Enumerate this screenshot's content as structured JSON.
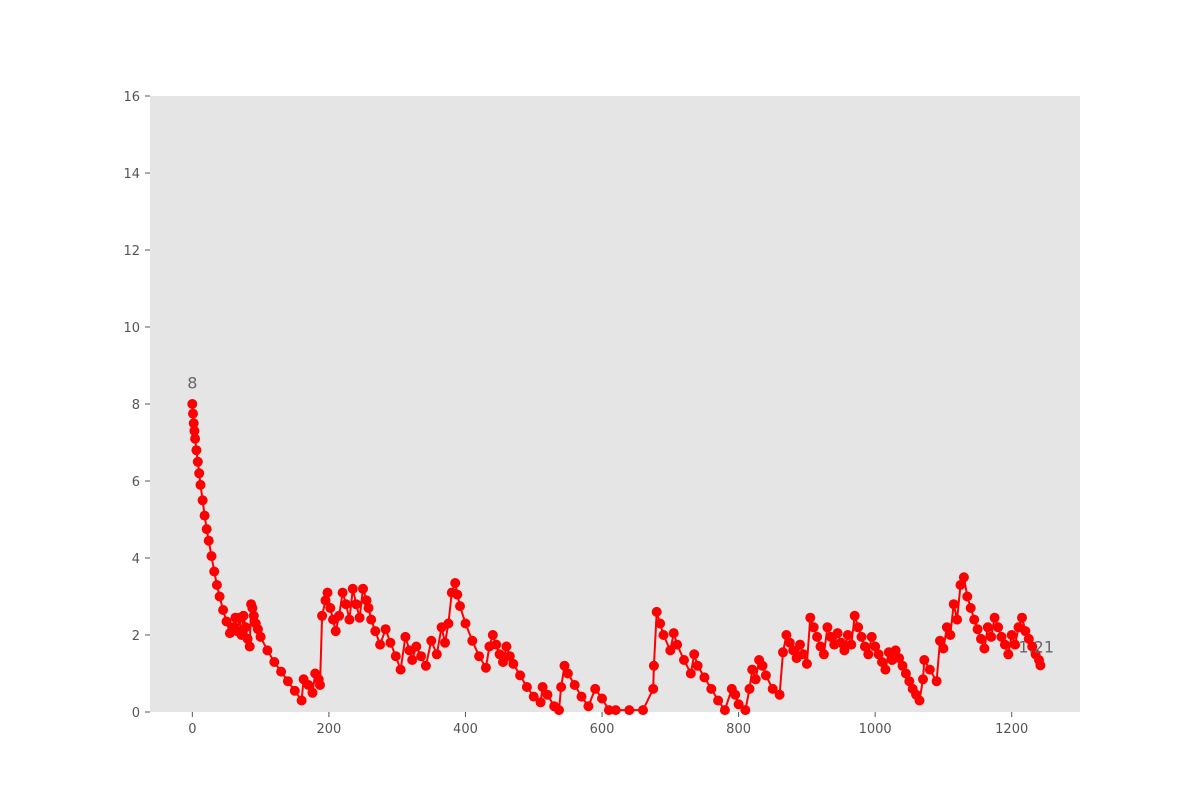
{
  "chart_data": {
    "type": "line",
    "title": "",
    "xlabel": "",
    "ylabel": "",
    "xlim": [
      -62,
      1300
    ],
    "ylim": [
      0,
      16
    ],
    "x_ticks": [
      0,
      200,
      400,
      600,
      800,
      1000,
      1200
    ],
    "y_ticks": [
      0,
      2,
      4,
      6,
      8,
      10,
      12,
      14,
      16
    ],
    "grid": false,
    "legend": "none",
    "colors": {
      "series": "#ff0000",
      "plot_background": "#e5e5e5",
      "text": "#555555"
    },
    "annotations": [
      {
        "text": "8",
        "x": 0,
        "y": 8.4
      },
      {
        "text": "1.21",
        "x": 1242,
        "y": 1.55
      }
    ],
    "series": [
      {
        "marker": "circle",
        "x": [
          0,
          1,
          2,
          3,
          4,
          6,
          8,
          10,
          12,
          15,
          18,
          21,
          24,
          28,
          32,
          36,
          40,
          45,
          50,
          55,
          60,
          63,
          66,
          69,
          72,
          75,
          78,
          81,
          84,
          86,
          88,
          90,
          93,
          96,
          100,
          110,
          120,
          130,
          140,
          150,
          160,
          163,
          170,
          176,
          180,
          185,
          187,
          190,
          195,
          198,
          202,
          206,
          210,
          215,
          220,
          225,
          230,
          235,
          240,
          245,
          250,
          255,
          258,
          262,
          268,
          275,
          283,
          290,
          298,
          305,
          312,
          318,
          322,
          328,
          335,
          342,
          350,
          358,
          365,
          370,
          375,
          380,
          385,
          388,
          392,
          400,
          410,
          420,
          430,
          435,
          440,
          445,
          450,
          455,
          460,
          465,
          470,
          480,
          490,
          500,
          510,
          513,
          520,
          530,
          537,
          540,
          545,
          550,
          560,
          570,
          580,
          590,
          600,
          610,
          620,
          640,
          660,
          675,
          676,
          680,
          685,
          690,
          700,
          705,
          710,
          720,
          730,
          735,
          740,
          750,
          760,
          770,
          780,
          790,
          795,
          800,
          810,
          816,
          820,
          825,
          830,
          835,
          840,
          850,
          860,
          865,
          870,
          875,
          880,
          885,
          890,
          895,
          900,
          905,
          910,
          915,
          920,
          925,
          930,
          935,
          940,
          945,
          950,
          955,
          960,
          965,
          970,
          975,
          980,
          985,
          990,
          995,
          1000,
          1005,
          1010,
          1015,
          1020,
          1025,
          1030,
          1035,
          1040,
          1045,
          1050,
          1055,
          1060,
          1065,
          1070,
          1072,
          1080,
          1090,
          1095,
          1100,
          1105,
          1110,
          1115,
          1120,
          1125,
          1130,
          1135,
          1140,
          1145,
          1150,
          1155,
          1160,
          1165,
          1170,
          1175,
          1180,
          1185,
          1190,
          1195,
          1200,
          1205,
          1210,
          1215,
          1220,
          1225,
          1230,
          1235,
          1240,
          1242
        ],
        "y": [
          8.0,
          7.75,
          7.5,
          7.3,
          7.1,
          6.8,
          6.5,
          6.2,
          5.9,
          5.5,
          5.1,
          4.75,
          4.45,
          4.05,
          3.65,
          3.3,
          3.0,
          2.65,
          2.35,
          2.05,
          2.2,
          2.45,
          2.1,
          2.45,
          2.0,
          2.5,
          2.2,
          1.9,
          1.7,
          2.8,
          2.7,
          2.5,
          2.3,
          2.15,
          1.95,
          1.6,
          1.3,
          1.05,
          0.8,
          0.55,
          0.3,
          0.85,
          0.7,
          0.5,
          1.0,
          0.85,
          0.7,
          2.5,
          2.9,
          3.1,
          2.7,
          2.4,
          2.1,
          2.5,
          3.1,
          2.8,
          2.4,
          3.2,
          2.8,
          2.45,
          3.2,
          2.9,
          2.7,
          2.4,
          2.1,
          1.75,
          2.15,
          1.8,
          1.45,
          1.1,
          1.95,
          1.6,
          1.35,
          1.7,
          1.45,
          1.2,
          1.85,
          1.5,
          2.2,
          1.8,
          2.3,
          3.1,
          3.35,
          3.05,
          2.75,
          2.3,
          1.85,
          1.45,
          1.15,
          1.7,
          2.0,
          1.75,
          1.5,
          1.3,
          1.7,
          1.45,
          1.25,
          0.95,
          0.65,
          0.4,
          0.25,
          0.65,
          0.45,
          0.15,
          0.05,
          0.65,
          1.2,
          1.0,
          0.7,
          0.4,
          0.15,
          0.6,
          0.35,
          0.05,
          0.05,
          0.05,
          0.05,
          0.6,
          1.2,
          2.6,
          2.3,
          2.0,
          1.6,
          2.05,
          1.75,
          1.35,
          1.0,
          1.5,
          1.2,
          0.9,
          0.6,
          0.3,
          0.05,
          0.6,
          0.45,
          0.2,
          0.05,
          0.6,
          1.1,
          0.85,
          1.35,
          1.2,
          0.95,
          0.6,
          0.45,
          1.55,
          2.0,
          1.8,
          1.6,
          1.4,
          1.75,
          1.5,
          1.25,
          2.45,
          2.2,
          1.95,
          1.7,
          1.5,
          2.2,
          1.95,
          1.75,
          2.05,
          1.8,
          1.6,
          2.0,
          1.75,
          2.5,
          2.2,
          1.95,
          1.7,
          1.5,
          1.95,
          1.7,
          1.5,
          1.3,
          1.1,
          1.55,
          1.35,
          1.6,
          1.4,
          1.2,
          1.0,
          0.8,
          0.6,
          0.45,
          0.3,
          0.85,
          1.35,
          1.1,
          0.8,
          1.85,
          1.65,
          2.2,
          2.0,
          2.8,
          2.4,
          3.3,
          3.5,
          3.0,
          2.7,
          2.4,
          2.15,
          1.9,
          1.65,
          2.2,
          1.95,
          2.45,
          2.2,
          1.95,
          1.75,
          1.5,
          2.0,
          1.75,
          2.2,
          2.45,
          2.1,
          1.9,
          1.7,
          1.5,
          1.35,
          1.21
        ]
      }
    ]
  }
}
